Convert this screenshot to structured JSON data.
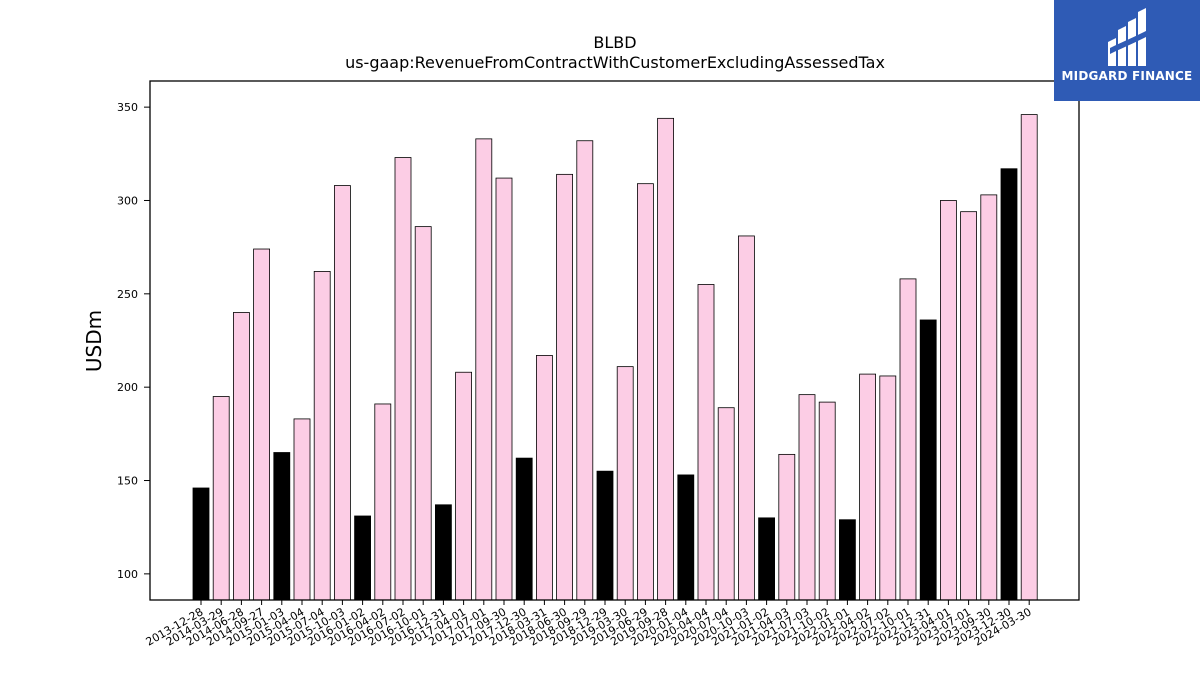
{
  "logo": {
    "text": "MIDGARD FINANCE"
  },
  "chart_data": {
    "type": "bar",
    "title": "BLBD",
    "subtitle": "us-gaap:RevenueFromContractWithCustomerExcludingAssessedTax",
    "xlabel": "",
    "ylabel": "USDm",
    "ylim": [
      86,
      364
    ],
    "yticks": [
      100,
      150,
      200,
      250,
      300,
      350
    ],
    "grid": false,
    "colors": {
      "highlight": "#000000",
      "normal": "#fccde5",
      "edge": "#000000"
    },
    "categories": [
      "2013-12-28",
      "2014-03-29",
      "2014-06-28",
      "2014-09-27",
      "2015-01-03",
      "2015-04-04",
      "2015-07-04",
      "2015-10-03",
      "2016-01-02",
      "2016-04-02",
      "2016-07-02",
      "2016-10-01",
      "2016-12-31",
      "2017-04-01",
      "2017-07-01",
      "2017-09-30",
      "2017-12-30",
      "2018-03-31",
      "2018-06-30",
      "2018-09-29",
      "2018-12-29",
      "2019-03-30",
      "2019-06-29",
      "2019-09-28",
      "2020-01-04",
      "2020-04-04",
      "2020-07-04",
      "2020-10-03",
      "2021-01-02",
      "2021-04-03",
      "2021-07-03",
      "2021-10-02",
      "2022-01-01",
      "2022-04-02",
      "2022-07-02",
      "2022-10-01",
      "2022-12-31",
      "2023-04-01",
      "2023-07-01",
      "2023-09-30",
      "2023-12-30",
      "2024-03-30"
    ],
    "values": [
      146,
      195,
      240,
      274,
      165,
      183,
      262,
      308,
      131,
      191,
      323,
      286,
      137,
      208,
      333,
      312,
      162,
      217,
      314,
      332,
      155,
      211,
      309,
      344,
      153,
      255,
      189,
      281,
      130,
      164,
      196,
      192,
      129,
      207,
      206,
      258,
      236,
      300,
      294,
      303,
      317,
      346
    ],
    "highlight": [
      true,
      false,
      false,
      false,
      true,
      false,
      false,
      false,
      true,
      false,
      false,
      false,
      true,
      false,
      false,
      false,
      true,
      false,
      false,
      false,
      true,
      false,
      false,
      false,
      true,
      false,
      false,
      false,
      true,
      false,
      false,
      false,
      true,
      false,
      false,
      false,
      true,
      false,
      false,
      false,
      true,
      false
    ]
  }
}
